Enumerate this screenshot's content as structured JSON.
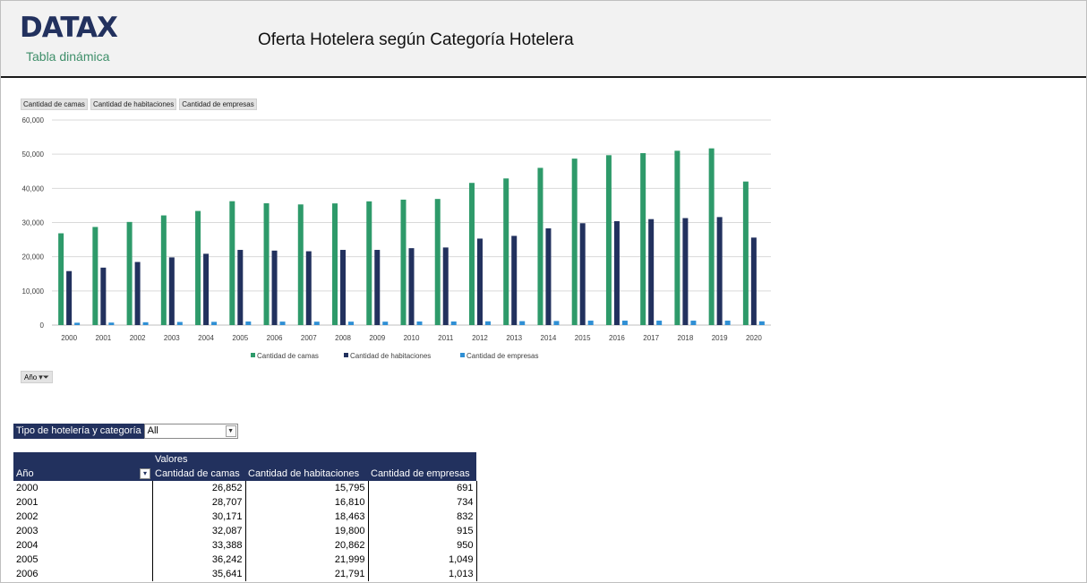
{
  "header": {
    "logo": "DATAX",
    "subtitle": "Tabla dinámica",
    "title": "Oferta Hotelera según Categoría Hotelera"
  },
  "field_buttons": [
    "Cantidad de camas",
    "Cantidad de habitaciones",
    "Cantidad de empresas"
  ],
  "axis_button": "Año",
  "colors": {
    "camas": "#2e9a6a",
    "habitaciones": "#22315e",
    "empresas": "#2f8fd4",
    "header_bg": "#22315e"
  },
  "chart_data": {
    "type": "bar",
    "categories": [
      "2000",
      "2001",
      "2002",
      "2003",
      "2004",
      "2005",
      "2006",
      "2007",
      "2008",
      "2009",
      "2010",
      "2011",
      "2012",
      "2013",
      "2014",
      "2015",
      "2016",
      "2017",
      "2018",
      "2019",
      "2020"
    ],
    "series": [
      {
        "name": "Cantidad de camas",
        "values": [
          26852,
          28707,
          30171,
          32087,
          33388,
          36242,
          35641,
          35300,
          35600,
          36200,
          36700,
          36900,
          41600,
          42900,
          46000,
          48700,
          49700,
          50300,
          51000,
          51700,
          42000
        ]
      },
      {
        "name": "Cantidad de habitaciones",
        "values": [
          15795,
          16810,
          18463,
          19800,
          20862,
          21999,
          21791,
          21600,
          22000,
          22000,
          22500,
          22700,
          25300,
          26100,
          28300,
          29800,
          30400,
          31000,
          31300,
          31600,
          25600
        ]
      },
      {
        "name": "Cantidad de empresas",
        "values": [
          691,
          734,
          832,
          915,
          950,
          1049,
          1013,
          1000,
          1000,
          1000,
          1050,
          1050,
          1100,
          1150,
          1200,
          1300,
          1300,
          1300,
          1300,
          1300,
          1100
        ]
      }
    ],
    "ylim": [
      0,
      60000
    ],
    "yticks": [
      "0",
      "10,000",
      "20,000",
      "30,000",
      "40,000",
      "50,000",
      "60,000"
    ],
    "grid": true,
    "legend": "bottom"
  },
  "filter": {
    "label": "Tipo de hotelería y categoría",
    "value": "All"
  },
  "table": {
    "valores": "Valores",
    "row_header": "Año",
    "columns": [
      "Cantidad de camas",
      "Cantidad de habitaciones",
      "Cantidad de empresas"
    ],
    "rows": [
      [
        "2000",
        "26,852",
        "15,795",
        "691"
      ],
      [
        "2001",
        "28,707",
        "16,810",
        "734"
      ],
      [
        "2002",
        "30,171",
        "18,463",
        "832"
      ],
      [
        "2003",
        "32,087",
        "19,800",
        "915"
      ],
      [
        "2004",
        "33,388",
        "20,862",
        "950"
      ],
      [
        "2005",
        "36,242",
        "21,999",
        "1,049"
      ],
      [
        "2006",
        "35,641",
        "21,791",
        "1,013"
      ]
    ]
  }
}
